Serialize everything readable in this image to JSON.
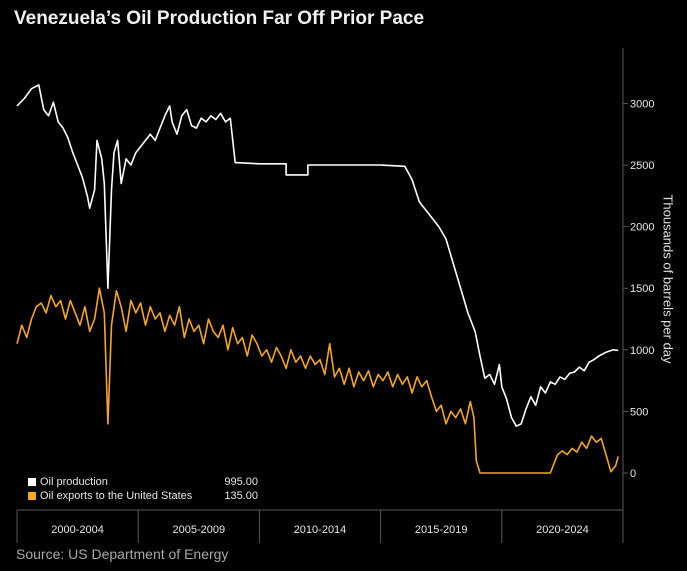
{
  "title": "Venezuela’s Oil Production Far Off Prior Pace",
  "source": "Source: US Department of Energy",
  "colors": {
    "production": "#ffffff",
    "exports": "#f5a623",
    "grid": "#5a5a5a"
  },
  "chart_data": {
    "type": "line",
    "title": "Venezuela’s Oil Production Far Off Prior Pace",
    "ylabel": "Thousands of barrels per day",
    "ylim": [
      -300,
      3450
    ],
    "xlim": [
      2000.0,
      2025.0
    ],
    "yticks": [
      0,
      500,
      1000,
      1500,
      2000,
      2500,
      3000
    ],
    "x_periods": [
      "2000-2004",
      "2005-2009",
      "2010-2014",
      "2015-2019",
      "2020-2024"
    ],
    "grid": false,
    "legend": "bottom-left",
    "series": [
      {
        "name": "Oil production",
        "latest_label": "995.00",
        "points": [
          [
            2000.0,
            2980
          ],
          [
            2000.3,
            3040
          ],
          [
            2000.6,
            3120
          ],
          [
            2000.9,
            3150
          ],
          [
            2001.1,
            2950
          ],
          [
            2001.3,
            2900
          ],
          [
            2001.5,
            3010
          ],
          [
            2001.7,
            2850
          ],
          [
            2001.9,
            2800
          ],
          [
            2002.1,
            2720
          ],
          [
            2002.3,
            2600
          ],
          [
            2002.5,
            2500
          ],
          [
            2002.7,
            2400
          ],
          [
            2002.9,
            2250
          ],
          [
            2003.0,
            2150
          ],
          [
            2003.2,
            2300
          ],
          [
            2003.3,
            2700
          ],
          [
            2003.5,
            2550
          ],
          [
            2003.6,
            2350
          ],
          [
            2003.75,
            1500
          ],
          [
            2003.9,
            2300
          ],
          [
            2004.0,
            2600
          ],
          [
            2004.15,
            2700
          ],
          [
            2004.3,
            2350
          ],
          [
            2004.5,
            2550
          ],
          [
            2004.7,
            2500
          ],
          [
            2004.9,
            2600
          ],
          [
            2005.1,
            2650
          ],
          [
            2005.3,
            2700
          ],
          [
            2005.5,
            2750
          ],
          [
            2005.7,
            2700
          ],
          [
            2005.9,
            2800
          ],
          [
            2006.1,
            2900
          ],
          [
            2006.3,
            2980
          ],
          [
            2006.4,
            2850
          ],
          [
            2006.6,
            2750
          ],
          [
            2006.8,
            2900
          ],
          [
            2007.0,
            2950
          ],
          [
            2007.2,
            2820
          ],
          [
            2007.4,
            2800
          ],
          [
            2007.6,
            2880
          ],
          [
            2007.8,
            2850
          ],
          [
            2008.0,
            2900
          ],
          [
            2008.2,
            2870
          ],
          [
            2008.4,
            2920
          ],
          [
            2008.6,
            2850
          ],
          [
            2008.8,
            2880
          ],
          [
            2009.0,
            2520
          ],
          [
            2010.0,
            2510
          ],
          [
            2011.1,
            2510
          ],
          [
            2011.1,
            2420
          ],
          [
            2012.0,
            2420
          ],
          [
            2012.0,
            2500
          ],
          [
            2015.0,
            2500
          ],
          [
            2016.0,
            2490
          ],
          [
            2016.3,
            2380
          ],
          [
            2016.6,
            2200
          ],
          [
            2017.0,
            2100
          ],
          [
            2017.4,
            2000
          ],
          [
            2017.7,
            1900
          ],
          [
            2018.0,
            1700
          ],
          [
            2018.3,
            1500
          ],
          [
            2018.6,
            1300
          ],
          [
            2018.9,
            1150
          ],
          [
            2019.1,
            950
          ],
          [
            2019.3,
            770
          ],
          [
            2019.5,
            800
          ],
          [
            2019.7,
            720
          ],
          [
            2019.9,
            880
          ],
          [
            2020.0,
            700
          ],
          [
            2020.2,
            600
          ],
          [
            2020.4,
            450
          ],
          [
            2020.6,
            380
          ],
          [
            2020.8,
            400
          ],
          [
            2021.0,
            520
          ],
          [
            2021.2,
            620
          ],
          [
            2021.4,
            550
          ],
          [
            2021.6,
            700
          ],
          [
            2021.8,
            650
          ],
          [
            2022.0,
            740
          ],
          [
            2022.2,
            720
          ],
          [
            2022.4,
            780
          ],
          [
            2022.6,
            760
          ],
          [
            2022.8,
            810
          ],
          [
            2023.0,
            820
          ],
          [
            2023.2,
            860
          ],
          [
            2023.4,
            830
          ],
          [
            2023.6,
            900
          ],
          [
            2023.8,
            920
          ],
          [
            2024.0,
            950
          ],
          [
            2024.3,
            980
          ],
          [
            2024.6,
            1000
          ],
          [
            2024.8,
            995
          ]
        ]
      },
      {
        "name": "Oil exports to the United States",
        "latest_label": "135.00",
        "points": [
          [
            2000.0,
            1050
          ],
          [
            2000.2,
            1200
          ],
          [
            2000.4,
            1100
          ],
          [
            2000.6,
            1250
          ],
          [
            2000.8,
            1350
          ],
          [
            2001.0,
            1380
          ],
          [
            2001.2,
            1300
          ],
          [
            2001.4,
            1440
          ],
          [
            2001.6,
            1350
          ],
          [
            2001.8,
            1400
          ],
          [
            2002.0,
            1250
          ],
          [
            2002.2,
            1400
          ],
          [
            2002.4,
            1300
          ],
          [
            2002.6,
            1200
          ],
          [
            2002.8,
            1350
          ],
          [
            2003.0,
            1150
          ],
          [
            2003.2,
            1250
          ],
          [
            2003.4,
            1500
          ],
          [
            2003.6,
            1300
          ],
          [
            2003.75,
            400
          ],
          [
            2003.9,
            1200
          ],
          [
            2004.1,
            1480
          ],
          [
            2004.3,
            1350
          ],
          [
            2004.5,
            1150
          ],
          [
            2004.7,
            1400
          ],
          [
            2004.9,
            1300
          ],
          [
            2005.1,
            1380
          ],
          [
            2005.3,
            1200
          ],
          [
            2005.5,
            1350
          ],
          [
            2005.7,
            1250
          ],
          [
            2005.9,
            1300
          ],
          [
            2006.1,
            1150
          ],
          [
            2006.3,
            1280
          ],
          [
            2006.5,
            1200
          ],
          [
            2006.7,
            1350
          ],
          [
            2006.9,
            1100
          ],
          [
            2007.1,
            1250
          ],
          [
            2007.3,
            1150
          ],
          [
            2007.5,
            1200
          ],
          [
            2007.7,
            1050
          ],
          [
            2007.9,
            1250
          ],
          [
            2008.1,
            1150
          ],
          [
            2008.3,
            1100
          ],
          [
            2008.5,
            1200
          ],
          [
            2008.7,
            1000
          ],
          [
            2008.9,
            1180
          ],
          [
            2009.1,
            1050
          ],
          [
            2009.3,
            1100
          ],
          [
            2009.5,
            950
          ],
          [
            2009.7,
            1120
          ],
          [
            2009.9,
            1050
          ],
          [
            2010.1,
            950
          ],
          [
            2010.3,
            1000
          ],
          [
            2010.5,
            900
          ],
          [
            2010.7,
            1020
          ],
          [
            2010.9,
            950
          ],
          [
            2011.1,
            850
          ],
          [
            2011.3,
            1000
          ],
          [
            2011.5,
            900
          ],
          [
            2011.7,
            950
          ],
          [
            2011.9,
            850
          ],
          [
            2012.1,
            950
          ],
          [
            2012.3,
            880
          ],
          [
            2012.5,
            920
          ],
          [
            2012.7,
            800
          ],
          [
            2012.9,
            1050
          ],
          [
            2013.1,
            780
          ],
          [
            2013.3,
            850
          ],
          [
            2013.5,
            720
          ],
          [
            2013.7,
            850
          ],
          [
            2013.9,
            700
          ],
          [
            2014.1,
            820
          ],
          [
            2014.3,
            750
          ],
          [
            2014.5,
            830
          ],
          [
            2014.7,
            700
          ],
          [
            2014.9,
            800
          ],
          [
            2015.1,
            750
          ],
          [
            2015.3,
            820
          ],
          [
            2015.5,
            700
          ],
          [
            2015.7,
            800
          ],
          [
            2015.9,
            720
          ],
          [
            2016.1,
            780
          ],
          [
            2016.3,
            650
          ],
          [
            2016.5,
            780
          ],
          [
            2016.7,
            700
          ],
          [
            2016.9,
            750
          ],
          [
            2017.1,
            620
          ],
          [
            2017.3,
            500
          ],
          [
            2017.5,
            550
          ],
          [
            2017.7,
            400
          ],
          [
            2017.9,
            500
          ],
          [
            2018.1,
            450
          ],
          [
            2018.3,
            520
          ],
          [
            2018.5,
            400
          ],
          [
            2018.7,
            580
          ],
          [
            2018.85,
            450
          ],
          [
            2018.95,
            100
          ],
          [
            2019.1,
            0
          ],
          [
            2022.0,
            0
          ],
          [
            2022.3,
            150
          ],
          [
            2022.5,
            180
          ],
          [
            2022.7,
            150
          ],
          [
            2022.9,
            200
          ],
          [
            2023.1,
            170
          ],
          [
            2023.3,
            250
          ],
          [
            2023.5,
            200
          ],
          [
            2023.7,
            300
          ],
          [
            2023.9,
            250
          ],
          [
            2024.1,
            280
          ],
          [
            2024.3,
            150
          ],
          [
            2024.5,
            10
          ],
          [
            2024.7,
            60
          ],
          [
            2024.8,
            135
          ]
        ]
      }
    ]
  }
}
